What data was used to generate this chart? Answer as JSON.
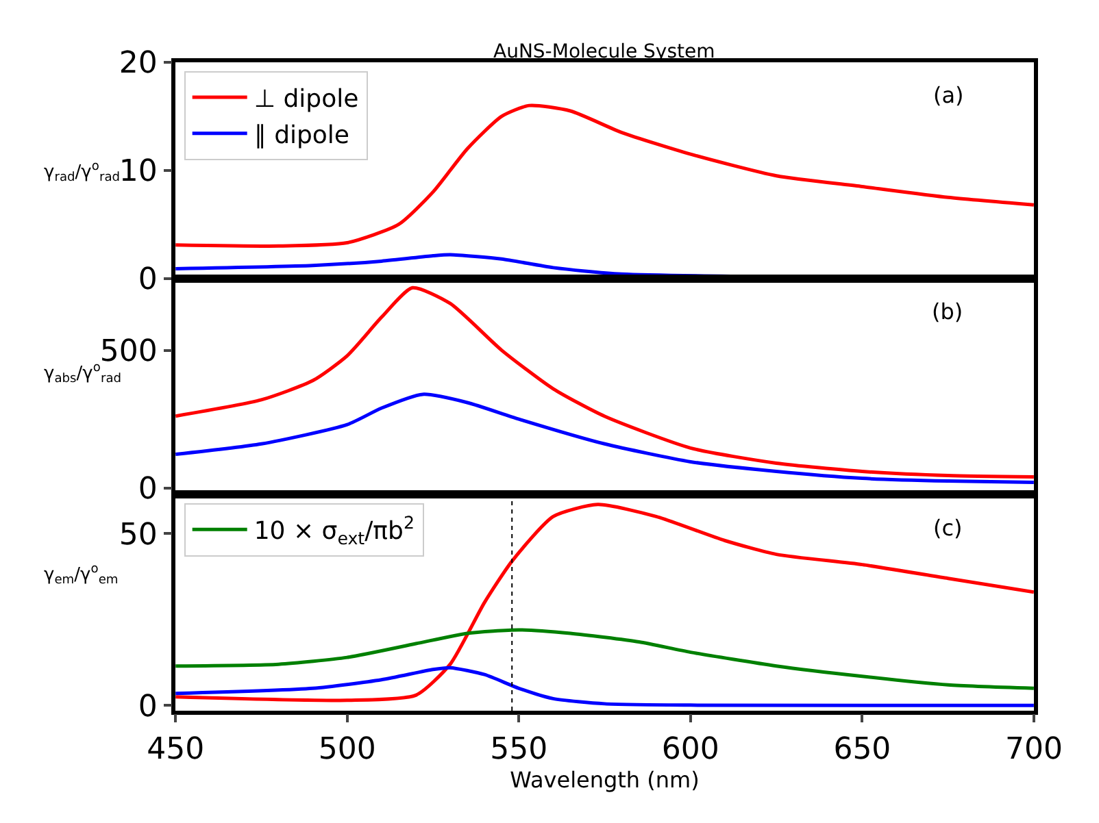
{
  "chart_data": [
    {
      "type": "line",
      "title": "AuNS-Molecule System",
      "ylabel": "γ$_{rad}$/γ$^{o}$$_{rad}$",
      "annotations": [
        "(a)"
      ],
      "legend": "top left",
      "grid": false,
      "tick_labels": "y",
      "xlim": [
        450,
        700
      ],
      "ylim": [
        0,
        20
      ],
      "yticks": [
        0,
        10,
        20
      ],
      "series": [
        {
          "name": "⊥ dipole",
          "color": "#ff0000",
          "x": [
            450,
            480,
            500,
            515,
            525,
            535,
            545,
            553,
            565,
            580,
            600,
            625,
            650,
            675,
            700
          ],
          "values": [
            3.1,
            3.0,
            3.3,
            5,
            8,
            12,
            15,
            16,
            15.5,
            13.5,
            11.5,
            9.5,
            8.5,
            7.5,
            6.8
          ]
        },
        {
          "name": "∥ dipole",
          "color": "#0000ff",
          "x": [
            450,
            490,
            510,
            525,
            530,
            545,
            560,
            580,
            700
          ],
          "values": [
            0.9,
            1.2,
            1.6,
            2.1,
            2.2,
            1.8,
            1.0,
            0.4,
            0
          ]
        }
      ]
    },
    {
      "type": "line",
      "ylabel": "γ$_{abs}$/γ$^{o}$$_{rad}$",
      "annotations": [
        "(b)"
      ],
      "legend": false,
      "grid": false,
      "tick_labels": "y",
      "xlim": [
        450,
        700
      ],
      "ylim": [
        -24,
        761
      ],
      "yticks": [
        0,
        500
      ],
      "series": [
        {
          "color": "#ff0000",
          "x": [
            450,
            475,
            490,
            500,
            510,
            519,
            530,
            545,
            560,
            575,
            600,
            625,
            650,
            675,
            700
          ],
          "values": [
            261,
            320,
            390,
            480,
            620,
            727,
            670,
            500,
            360,
            260,
            145,
            90,
            60,
            45,
            40
          ]
        },
        {
          "color": "#0000ff",
          "x": [
            450,
            475,
            500,
            510,
            522,
            535,
            550,
            575,
            600,
            625,
            650,
            675,
            700
          ],
          "values": [
            122,
            160,
            230,
            290,
            340,
            310,
            250,
            160,
            95,
            60,
            35,
            25,
            20
          ]
        }
      ]
    },
    {
      "type": "line",
      "xlabel": "Wavelength (nm)",
      "ylabel": "γ$_{em}$/γ$^{o}$$_{em}$",
      "annotations": [
        "(c)"
      ],
      "legend": "top left",
      "grid": false,
      "xlim": [
        450,
        700
      ],
      "xticks": [
        450,
        500,
        550,
        600,
        650,
        700
      ],
      "ylim": [
        -1.5,
        61.4
      ],
      "yticks": [
        0,
        50
      ],
      "ref_lines": [
        {
          "axis": "x",
          "value": 548,
          "color": "#000000",
          "line_style": "dotted"
        }
      ],
      "series": [
        {
          "color": "#ff0000",
          "x": [
            450,
            500,
            520,
            530,
            540,
            548,
            560,
            573,
            590,
            610,
            625,
            650,
            675,
            700
          ],
          "values": [
            2.5,
            1.5,
            3,
            12,
            30,
            42,
            55,
            58.5,
            55,
            48,
            44,
            41,
            37,
            33
          ]
        },
        {
          "color": "#0000ff",
          "x": [
            450,
            490,
            510,
            525,
            530,
            540,
            550,
            560,
            575,
            600,
            700
          ],
          "values": [
            3.5,
            5,
            7.5,
            10.5,
            11,
            9,
            5,
            2,
            0.5,
            0.1,
            0
          ]
        },
        {
          "name": "10 × σ$_{ext}$/πb$^{2}$",
          "color": "#008000",
          "x": [
            450,
            480,
            500,
            520,
            535,
            550,
            565,
            585,
            600,
            625,
            650,
            675,
            700
          ],
          "values": [
            11.5,
            12,
            14,
            18,
            21,
            22,
            21,
            18.5,
            15.5,
            11.5,
            8.5,
            6,
            5
          ]
        }
      ]
    }
  ]
}
